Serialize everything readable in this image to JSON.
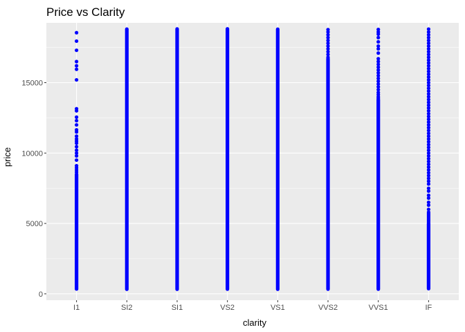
{
  "chart_data": {
    "type": "scatter",
    "title": "Price vs Clarity",
    "xlabel": "clarity",
    "ylabel": "price",
    "x_type": "categorical",
    "categories": [
      "I1",
      "SI2",
      "SI1",
      "VS2",
      "VS1",
      "VVS2",
      "VVS1",
      "IF"
    ],
    "ylim": [
      -450,
      19250
    ],
    "yticks": [
      0,
      5000,
      10000,
      15000
    ],
    "ytick_labels": [
      "0",
      "5000",
      "10000",
      "15000"
    ],
    "grid": true,
    "legend": "none",
    "point_color": "#0000ff",
    "panel_color": "#ebebeb",
    "series": [
      {
        "category": "I1",
        "dense_range": [
          345,
          8500
        ],
        "outliers": [
          8650,
          8800,
          8950,
          9100,
          9500,
          9800,
          10000,
          10200,
          10450,
          10700,
          10850,
          11000,
          11200,
          11500,
          11650,
          12000,
          12300,
          12550,
          13000,
          13150,
          15200,
          15950,
          16200,
          16500,
          17300,
          17950,
          18550
        ]
      },
      {
        "category": "SI2",
        "dense_range": [
          326,
          18804
        ],
        "outliers": []
      },
      {
        "category": "SI1",
        "dense_range": [
          326,
          18818
        ],
        "outliers": []
      },
      {
        "category": "VS2",
        "dense_range": [
          334,
          18823
        ],
        "outliers": []
      },
      {
        "category": "VS1",
        "dense_range": [
          327,
          18795
        ],
        "outliers": []
      },
      {
        "category": "VVS2",
        "dense_range": [
          336,
          16700
        ],
        "outliers": [
          16800,
          17000,
          17200,
          17400,
          17600,
          17800,
          18000,
          18200,
          18400,
          18600,
          18768
        ]
      },
      {
        "category": "VVS1",
        "dense_range": [
          336,
          13800
        ],
        "outliers": [
          13900,
          14000,
          14150,
          14300,
          14500,
          14700,
          14900,
          15100,
          15300,
          15500,
          15700,
          15900,
          16100,
          16300,
          16500,
          16700,
          17100,
          17400,
          17600,
          17900,
          18200,
          18445,
          18600,
          18777
        ]
      },
      {
        "category": "IF",
        "dense_range": [
          369,
          5000
        ],
        "outliers": [
          5100,
          5200,
          5300,
          5400,
          5500,
          5600,
          5700,
          5800,
          6000,
          6300,
          6500,
          6800,
          7000,
          7300,
          7500,
          7800,
          8000,
          8200,
          8400,
          8600,
          8800,
          9000,
          9200,
          9400,
          9600,
          9800,
          10000,
          10200,
          10400,
          10600,
          10800,
          11000,
          11200,
          11400,
          11600,
          11800,
          12000,
          12200,
          12400,
          12600,
          12800,
          13000,
          13200,
          13400,
          13600,
          13800,
          14000,
          14200,
          14400,
          14600,
          14800,
          15000,
          15200,
          15400,
          15600,
          15800,
          16000,
          16200,
          16400,
          16600,
          16800,
          17000,
          17200,
          17400,
          17600,
          17800,
          18000,
          18200,
          18400,
          18600,
          18806
        ]
      }
    ]
  }
}
